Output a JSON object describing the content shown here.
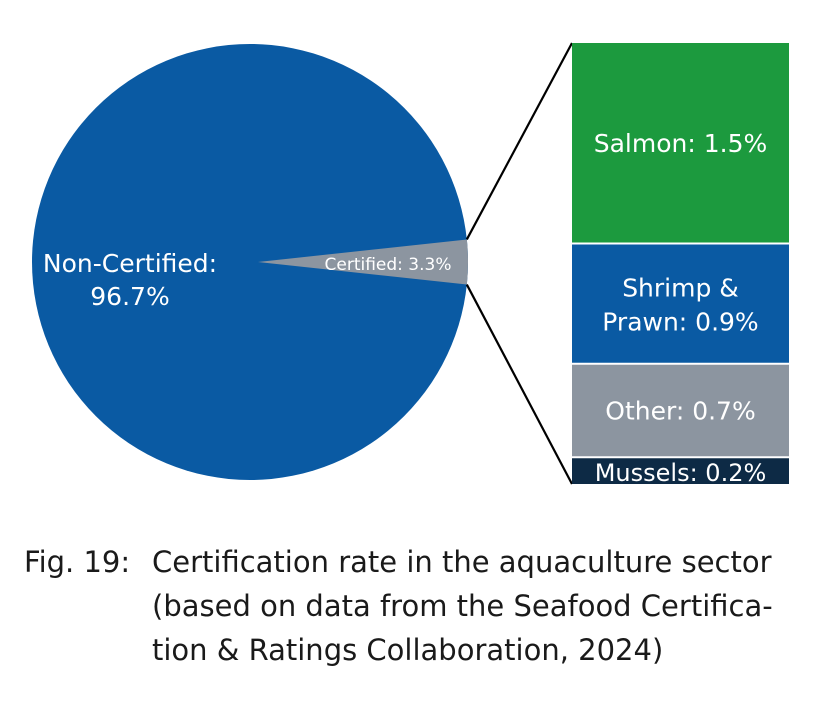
{
  "chart_data": {
    "type": "pie",
    "slices": [
      {
        "label": "Non-Certified:",
        "value_text": "96.7%",
        "value": 96.7,
        "color": "#0a5aa3"
      },
      {
        "label": "Certified:",
        "value_text": "3.3%",
        "value": 3.3,
        "color": "#8c95a0"
      }
    ],
    "breakdown": [
      {
        "label": "Salmon:",
        "value_text": "1.5%",
        "value": 1.5,
        "color": "#1c9a3e"
      },
      {
        "label_lines": [
          "Shrimp &",
          "Prawn:"
        ],
        "value_text": "0.9%",
        "value": 0.9,
        "color": "#0a5aa3"
      },
      {
        "label": "Other:",
        "value_text": "0.7%",
        "value": 0.7,
        "color": "#8c95a0"
      },
      {
        "label": "Mussels:",
        "value_text": "0.2%",
        "value": 0.2,
        "color": "#0d2a45"
      }
    ]
  },
  "caption": {
    "number": "Fig. 19:",
    "lines": [
      "Certification rate in the aquaculture sector",
      "(based on data from the Seafood Certifica-",
      "tion & Ratings Collaboration, 2024)"
    ]
  }
}
